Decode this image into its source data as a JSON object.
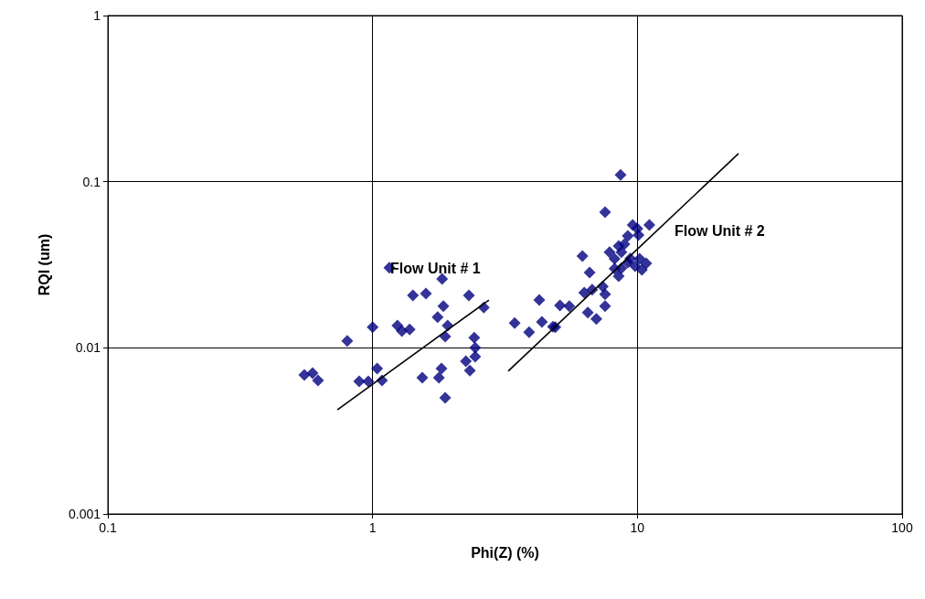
{
  "chart_data": {
    "type": "scatter",
    "xlabel": "Phi(Z) (%)",
    "ylabel": "RQI (um)",
    "log": "xy",
    "grid": true,
    "xlim": [
      0.1,
      100
    ],
    "xticks": [
      0.1,
      1,
      10,
      100
    ],
    "ylim": [
      0.001,
      1
    ],
    "yticks": [
      0.001,
      0.01,
      0.1,
      1
    ],
    "series": [
      {
        "marker": "diamond",
        "color": "#000080",
        "x": [
          0.552,
          0.593,
          0.622,
          0.802,
          0.89,
          0.963,
          1.0,
          1.04,
          1.085,
          1.157,
          1.24,
          1.29,
          1.38,
          1.42,
          1.59,
          1.83,
          1.85,
          1.76,
          1.92,
          1.88,
          2.31,
          2.63,
          2.42,
          2.44,
          2.44,
          2.25,
          2.33,
          1.82,
          1.78,
          1.54,
          1.88,
          8.64,
          7.55,
          9.6,
          11.1,
          10.0,
          10.1,
          9.2,
          8.93,
          8.5,
          6.2,
          7.85,
          8.7,
          8.2,
          9.4,
          10.2,
          10.8,
          10.4,
          9.8,
          9.2,
          8.7,
          8.2,
          8.5,
          6.6,
          7.4,
          7.55,
          6.75,
          6.3,
          6.5,
          7.0,
          7.55,
          5.53,
          5.1,
          4.26,
          4.36,
          4.9,
          4.8,
          3.44,
          3.9
        ],
        "values": [
          0.00687,
          0.00705,
          0.00636,
          0.011,
          0.00628,
          0.00628,
          0.0133,
          0.0075,
          0.00636,
          0.0303,
          0.0136,
          0.0126,
          0.0129,
          0.0207,
          0.0212,
          0.026,
          0.0178,
          0.0153,
          0.0136,
          0.0117,
          0.0207,
          0.0175,
          0.0115,
          0.01,
          0.00885,
          0.0083,
          0.0073,
          0.0075,
          0.0066,
          0.0066,
          0.005,
          0.11,
          0.0655,
          0.0548,
          0.0548,
          0.0521,
          0.0477,
          0.0472,
          0.042,
          0.041,
          0.0357,
          0.0376,
          0.0376,
          0.0343,
          0.0345,
          0.0343,
          0.0322,
          0.0295,
          0.031,
          0.0326,
          0.0302,
          0.03,
          0.027,
          0.0284,
          0.0234,
          0.021,
          0.0224,
          0.0215,
          0.0163,
          0.0149,
          0.0178,
          0.0178,
          0.018,
          0.0194,
          0.0143,
          0.0133,
          0.0134,
          0.0141,
          0.0124
        ]
      },
      {
        "type": "line",
        "marker": "none",
        "color": "#000000",
        "x": [
          0.736,
          2.75
        ],
        "values": [
          0.00424,
          0.0194
        ]
      },
      {
        "type": "line",
        "marker": "none",
        "color": "#000000",
        "x": [
          3.25,
          24.1
        ],
        "values": [
          0.00723,
          0.1476
        ]
      }
    ],
    "annotations": [
      "Flow Unit # 1",
      "Flow Unit # 2"
    ]
  }
}
